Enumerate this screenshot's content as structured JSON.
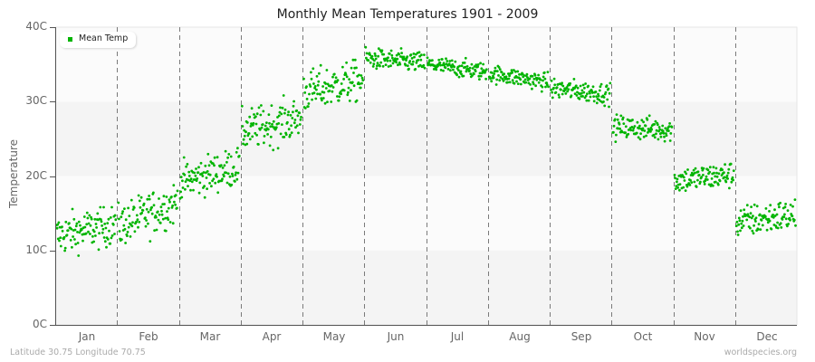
{
  "title": "Monthly Mean Temperatures 1901 - 2009",
  "footer": {
    "location": "Latitude 30.75 Longitude 70.75",
    "source": "worldspecies.org"
  },
  "colors": {
    "series": "#00b400",
    "band_light": "#fbfbfb",
    "band_dark": "#f4f4f4",
    "divider": "#7a7a7a",
    "axis": "#555555"
  },
  "chart_data": {
    "type": "scatter",
    "title": "Monthly Mean Temperatures 1901 - 2009",
    "xlabel": "",
    "ylabel": "Temperature",
    "ylim": [
      0,
      40
    ],
    "yticks": [
      "0C",
      "10C",
      "20C",
      "30C",
      "40C"
    ],
    "categories": [
      "Jan",
      "Feb",
      "Mar",
      "Apr",
      "May",
      "Jun",
      "Jul",
      "Aug",
      "Sep",
      "Oct",
      "Nov",
      "Dec"
    ],
    "grid": "alternating horizontal bands every 10C; dashed vertical month dividers",
    "legend": {
      "position": "top-left",
      "entries": [
        "Mean Temp"
      ]
    },
    "years": [
      1901,
      2009
    ],
    "points_per_month": 109,
    "series": [
      {
        "name": "Mean Temp",
        "monthly": [
          {
            "month": "Jan",
            "mean_start": 12.0,
            "mean_end": 13.5,
            "min": 9.3,
            "max": 15.8,
            "spread": 1.4
          },
          {
            "month": "Feb",
            "mean_start": 13.2,
            "mean_end": 16.5,
            "min": 11.0,
            "max": 19.6,
            "spread": 1.5
          },
          {
            "month": "Mar",
            "mean_start": 19.2,
            "mean_end": 21.3,
            "min": 17.0,
            "max": 24.6,
            "spread": 1.3
          },
          {
            "month": "Apr",
            "mean_start": 26.0,
            "mean_end": 27.8,
            "min": 21.8,
            "max": 32.2,
            "spread": 1.4
          },
          {
            "month": "May",
            "mean_start": 31.2,
            "mean_end": 33.0,
            "min": 28.6,
            "max": 35.6,
            "spread": 1.4
          },
          {
            "month": "Jun",
            "mean_start": 35.8,
            "mean_end": 35.2,
            "min": 33.6,
            "max": 37.5,
            "spread": 0.7
          },
          {
            "month": "Jul",
            "mean_start": 35.0,
            "mean_end": 34.0,
            "min": 32.6,
            "max": 36.2,
            "spread": 0.6
          },
          {
            "month": "Aug",
            "mean_start": 33.8,
            "mean_end": 32.6,
            "min": 31.2,
            "max": 35.0,
            "spread": 0.6
          },
          {
            "month": "Sep",
            "mean_start": 31.8,
            "mean_end": 31.0,
            "min": 29.0,
            "max": 33.2,
            "spread": 0.7
          },
          {
            "month": "Oct",
            "mean_start": 26.6,
            "mean_end": 26.2,
            "min": 24.0,
            "max": 29.5,
            "spread": 0.8
          },
          {
            "month": "Nov",
            "mean_start": 19.4,
            "mean_end": 20.2,
            "min": 16.4,
            "max": 21.8,
            "spread": 0.9
          },
          {
            "month": "Dec",
            "mean_start": 13.8,
            "mean_end": 14.8,
            "min": 10.6,
            "max": 17.6,
            "spread": 1.1
          }
        ]
      }
    ]
  }
}
